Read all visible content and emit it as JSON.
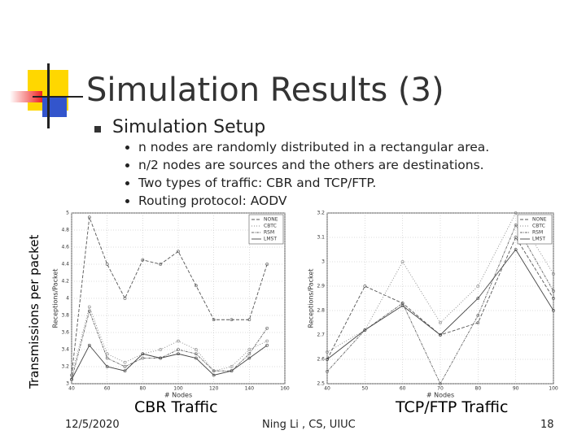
{
  "title": "Simulation Results (3)",
  "bullet": "Simulation Setup",
  "sub_bullets": [
    "n nodes are randomly distributed in a rectangular area.",
    "n/2 nodes are sources and the others are destinations.",
    "Two types of traffic: CBR and TCP/FTP.",
    "Routing protocol: AODV"
  ],
  "side_label": "Transmissions per packet",
  "captions": [
    "CBR Traffic",
    "TCP/FTP Traffic"
  ],
  "footer": {
    "date": "12/5/2020",
    "author": "Ning Li , CS, UIUC",
    "page": "18"
  },
  "chart_data": [
    {
      "type": "line",
      "x_label": "# Nodes",
      "y_label": "Receptions/Packet",
      "x": [
        40,
        50,
        60,
        70,
        80,
        90,
        100,
        110,
        120,
        130,
        140,
        150
      ],
      "xlim": [
        40,
        160
      ],
      "xticks": [
        40,
        60,
        80,
        100,
        120,
        140,
        160
      ],
      "ylim": [
        3,
        5
      ],
      "yticks": [
        3,
        3.2,
        3.4,
        3.6,
        3.8,
        4,
        4.2,
        4.4,
        4.6,
        4.8,
        5
      ],
      "grid": true,
      "legend": "upper-right",
      "series": [
        {
          "name": "NONE",
          "color": "#555555",
          "values": [
            3.1,
            4.95,
            4.4,
            4.0,
            4.45,
            4.4,
            4.55,
            4.15,
            3.75,
            3.75,
            3.75,
            4.4
          ]
        },
        {
          "name": "CBTC",
          "color": "#888888",
          "values": [
            3.1,
            3.9,
            3.35,
            3.25,
            3.35,
            3.4,
            3.5,
            3.4,
            3.15,
            3.2,
            3.4,
            3.5
          ]
        },
        {
          "name": "RSM",
          "color": "#666666",
          "values": [
            3.05,
            3.85,
            3.3,
            3.2,
            3.3,
            3.3,
            3.4,
            3.35,
            3.15,
            3.15,
            3.35,
            3.65
          ]
        },
        {
          "name": "LMST",
          "color": "#444444",
          "values": [
            3.05,
            3.45,
            3.2,
            3.15,
            3.35,
            3.3,
            3.35,
            3.3,
            3.1,
            3.15,
            3.3,
            3.45
          ]
        }
      ]
    },
    {
      "type": "line",
      "x_label": "# Nodes",
      "y_label": "Receptions/Packet",
      "x": [
        40,
        50,
        60,
        70,
        80,
        90,
        100
      ],
      "xlim": [
        40,
        100
      ],
      "xticks": [
        40,
        50,
        60,
        70,
        80,
        90,
        100
      ],
      "ylim": [
        2.5,
        3.2
      ],
      "yticks": [
        2.5,
        2.6,
        2.7,
        2.8,
        2.9,
        3,
        3.1,
        3.2
      ],
      "grid": true,
      "legend": "upper-right",
      "series": [
        {
          "name": "NONE",
          "color": "#555555",
          "values": [
            2.6,
            2.9,
            2.83,
            2.7,
            2.75,
            3.1,
            2.85
          ]
        },
        {
          "name": "CBTC",
          "color": "#888888",
          "values": [
            2.63,
            2.72,
            3.0,
            2.75,
            2.9,
            3.2,
            2.95
          ]
        },
        {
          "name": "RSM",
          "color": "#666666",
          "values": [
            2.55,
            2.72,
            2.83,
            2.5,
            2.78,
            3.15,
            2.88
          ]
        },
        {
          "name": "LMST",
          "color": "#444444",
          "values": [
            2.6,
            2.72,
            2.82,
            2.7,
            2.85,
            3.05,
            2.8
          ]
        }
      ]
    }
  ]
}
